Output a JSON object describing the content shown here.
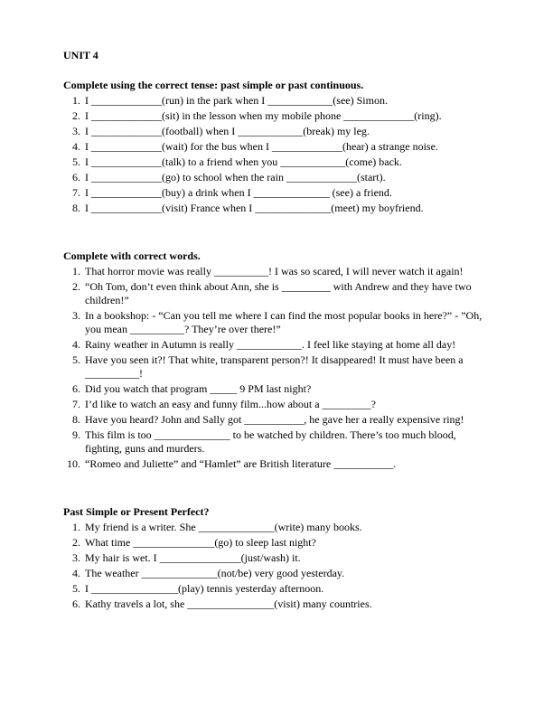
{
  "unit_title": "UNIT 4",
  "sections": [
    {
      "title": "Complete using the correct tense: past simple or past continuous.",
      "items": [
        "I _____________(run) in the park when I ____________(see) Simon.",
        "I _____________(sit) in the lesson when my mobile phone _____________(ring).",
        "I _____________(football) when I ____________(break) my leg.",
        "I _____________(wait) for the bus when I _____________(hear) a strange noise.",
        "I _____________(talk) to a friend when you ____________(come) back.",
        "I _____________(go) to school when the rain _____________(start).",
        "I _____________(buy) a drink when I ______________ (see) a friend.",
        "I _____________(visit) France when I ______________(meet) my boyfriend."
      ]
    },
    {
      "title": "Complete with correct words.",
      "items": [
        "That horror movie was really __________! I was so scared, I will never watch it again!",
        "“Oh Tom, don’t even think about Ann, she is _________ with Andrew and they have two children!”",
        "In a bookshop: - “Can you tell me where I can find the most popular books in here?” - ”Oh, you mean __________? They’re over there!”",
        "Rainy weather in Autumn is really ____________. I feel like staying at home all day!",
        "Have you seen it?! That white, transparent person?! It disappeared! It must have been a __________!",
        "Did you watch that program _____ 9 PM last night?",
        "I’d like to watch an easy and funny film...how about a _________?",
        "Have you heard? John and Sally got ___________, he gave her a really expensive ring!",
        "This film is too ______________ to be watched by children. There’s too much blood, fighting, guns and murders.",
        "“Romeo and Juliette” and “Hamlet” are British literature ___________."
      ]
    },
    {
      "title": "Past Simple or Present Perfect?",
      "items": [
        "My friend is a writer. She ______________(write) many books.",
        "What time _______________(go) to sleep last night?",
        "My hair is wet. I _______________(just/wash) it.",
        "The weather ______________(not/be) very good yesterday.",
        "I ________________(play) tennis yesterday afternoon.",
        "Kathy travels a lot, she ________________(visit) many countries."
      ]
    }
  ]
}
